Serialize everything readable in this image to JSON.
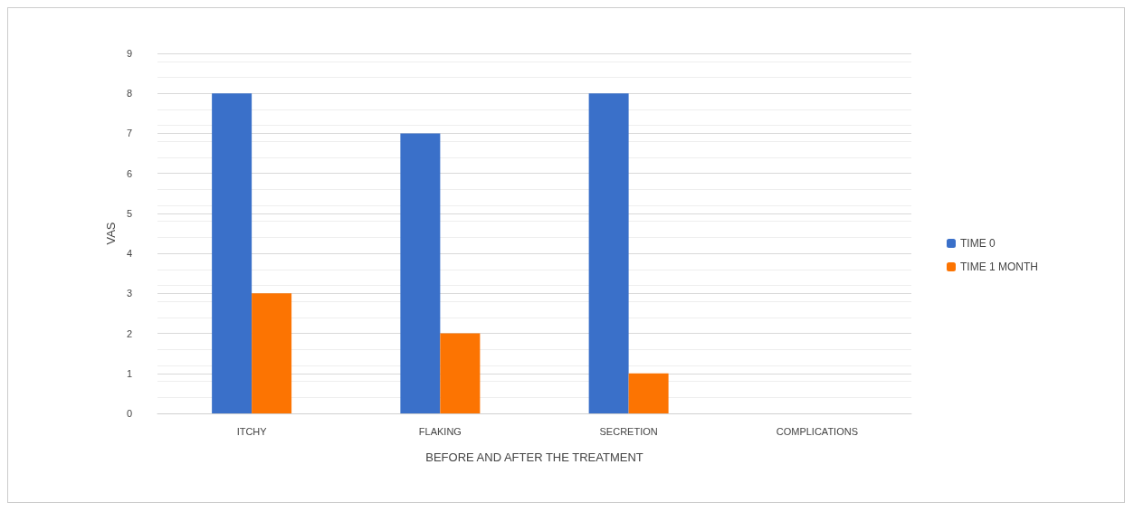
{
  "chart_data": {
    "type": "bar",
    "xlabel": "BEFORE AND AFTER THE TREATMENT",
    "ylabel": "VAS",
    "categories": [
      "ITCHY",
      "FLAKING",
      "SECRETION",
      "COMPLICATIONS"
    ],
    "series": [
      {
        "name": "TIME 0",
        "color": "#3a70c9",
        "values": [
          8,
          7,
          8,
          0
        ]
      },
      {
        "name": "TIME 1 MONTH",
        "color": "#fc7402",
        "values": [
          3,
          2,
          1,
          0
        ]
      }
    ],
    "ylim": [
      0,
      9
    ],
    "yticks": [
      0,
      1,
      2,
      3,
      4,
      5,
      6,
      7,
      8,
      9
    ],
    "grid": "y",
    "legend": "right"
  }
}
